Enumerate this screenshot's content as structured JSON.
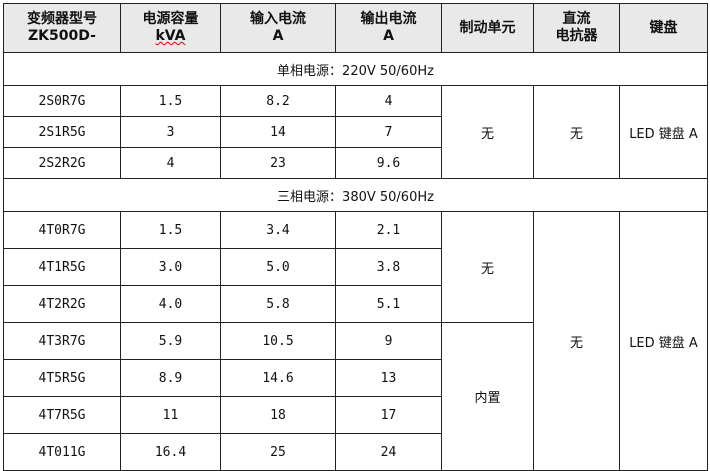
{
  "headers": [
    {
      "line1": "变频器型号",
      "line2": "ZK500D-"
    },
    {
      "line1": "电源容量",
      "line2": "kVA"
    },
    {
      "line1": "输入电流",
      "line2": "A"
    },
    {
      "line1": "输出电流",
      "line2": "A"
    },
    {
      "line1": "制动单元",
      "line2": ""
    },
    {
      "line1": "直流",
      "line2": "电抗器"
    },
    {
      "line1": "键盘",
      "line2": ""
    }
  ],
  "single_phase": {
    "title": "单相电源：220V  50/60Hz",
    "rows": [
      [
        "2S0R7G",
        "1.5",
        "8.2",
        "4"
      ],
      [
        "2S1R5G",
        "3",
        "14",
        "7"
      ],
      [
        "2S2R2G",
        "4",
        "23",
        "9.6"
      ]
    ],
    "brake": "无",
    "reactor": "无",
    "keypad": "LED 键盘 A"
  },
  "three_phase": {
    "title": "三相电源：380V  50/60Hz",
    "rows": [
      [
        "4T0R7G",
        "1.5",
        "3.4",
        "2.1"
      ],
      [
        "4T1R5G",
        "3.0",
        "5.0",
        "3.8"
      ],
      [
        "4T2R2G",
        "4.0",
        "5.8",
        "5.1"
      ],
      [
        "4T3R7G",
        "5.9",
        "10.5",
        "9"
      ],
      [
        "4T5R5G",
        "8.9",
        "14.6",
        "13"
      ],
      [
        "4T7R5G",
        "11",
        "18",
        "17"
      ],
      [
        "4T011G",
        "16.4",
        "25",
        "24"
      ]
    ],
    "brake_a": "无",
    "brake_b": "内置",
    "reactor": "无",
    "keypad": "LED 键盘 A"
  }
}
